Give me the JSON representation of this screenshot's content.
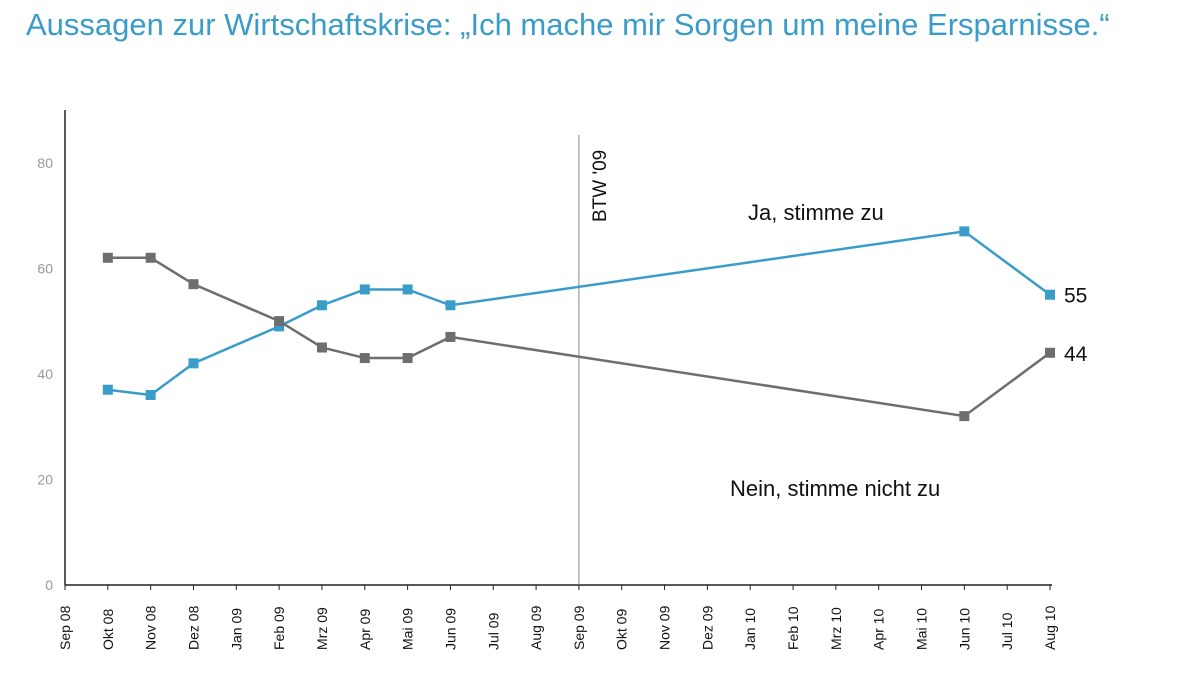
{
  "chart_data": {
    "type": "line",
    "title": "Aussagen zur Wirtschaftskrise: „Ich mache mir Sorgen um meine Ersparnisse.“",
    "categories": [
      "Sep 08",
      "Okt 08",
      "Nov 08",
      "Dez 08",
      "Jan 09",
      "Feb 09",
      "Mrz 09",
      "Apr 09",
      "Mai 09",
      "Jun 09",
      "Jul 09",
      "Aug 09",
      "Sep 09",
      "Okt 09",
      "Nov 09",
      "Dez 09",
      "Jan 10",
      "Feb 10",
      "Mrz 10",
      "Apr 10",
      "Mai 10",
      "Jun 10",
      "Jul 10",
      "Aug 10"
    ],
    "ylim": [
      0,
      90
    ],
    "yticks": [
      0,
      20,
      40,
      60,
      80
    ],
    "grid": false,
    "series": [
      {
        "name": "Ja, stimme zu",
        "color": "#3a9cc8",
        "values": [
          null,
          37,
          36,
          42,
          null,
          49,
          53,
          56,
          56,
          53,
          null,
          null,
          null,
          null,
          null,
          null,
          null,
          null,
          null,
          null,
          null,
          67,
          null,
          55
        ]
      },
      {
        "name": "Nein, stimme nicht zu",
        "color": "#6e6e6e",
        "values": [
          null,
          62,
          62,
          57,
          null,
          50,
          45,
          43,
          43,
          47,
          null,
          null,
          null,
          null,
          null,
          null,
          null,
          null,
          null,
          null,
          null,
          32,
          null,
          44
        ]
      }
    ],
    "end_labels": [
      "55",
      "44"
    ],
    "annotation": {
      "label": "BTW '09",
      "at": "Sep 09"
    }
  }
}
